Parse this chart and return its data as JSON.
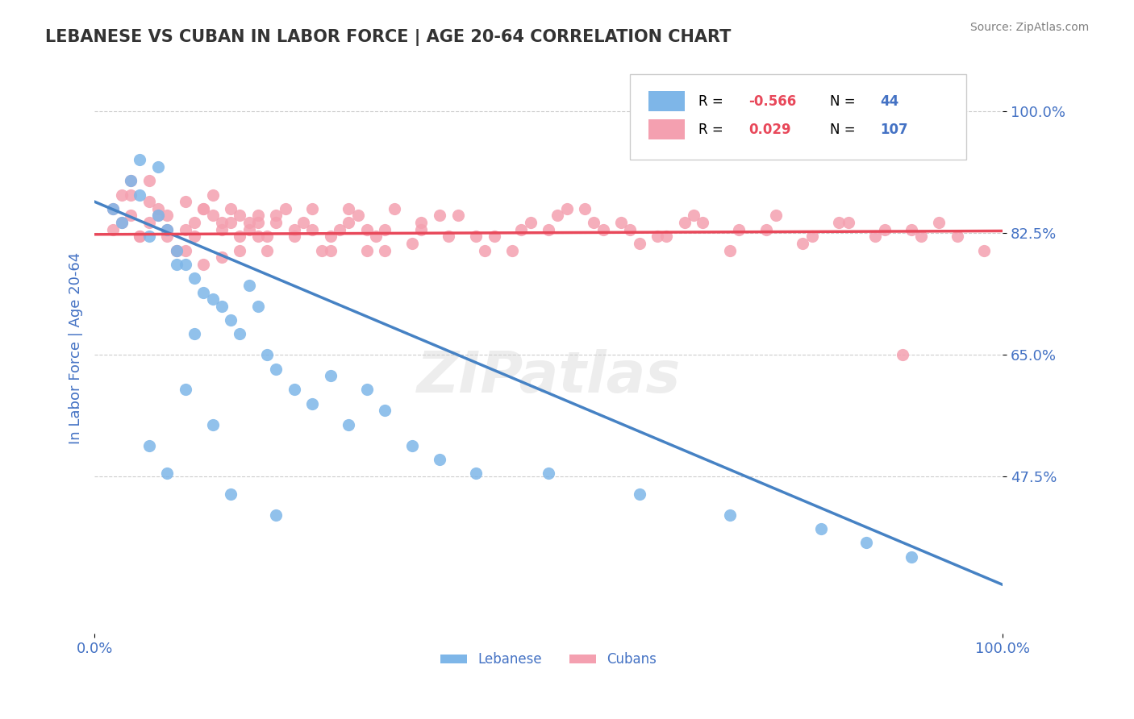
{
  "title": "LEBANESE VS CUBAN IN LABOR FORCE | AGE 20-64 CORRELATION CHART",
  "source_text": "Source: ZipAtlas.com",
  "xlabel": "",
  "ylabel": "In Labor Force | Age 20-64",
  "xlim": [
    0.0,
    1.0
  ],
  "ylim": [
    0.3,
    1.05
  ],
  "yticks": [
    0.475,
    0.65,
    0.825,
    1.0
  ],
  "ytick_labels": [
    "47.5%",
    "65.0%",
    "82.5%",
    "100.0%"
  ],
  "xtick_labels": [
    "0.0%",
    "100.0%"
  ],
  "xticks": [
    0.0,
    1.0
  ],
  "lebanese_R": -0.566,
  "lebanese_N": 44,
  "cuban_R": 0.029,
  "cuban_N": 107,
  "lebanese_color": "#7eb6e8",
  "cuban_color": "#f4a0b0",
  "lebanese_line_color": "#4682c4",
  "cuban_line_color": "#e8485a",
  "watermark": "ZIPatlas",
  "background_color": "#ffffff",
  "grid_color": "#cccccc",
  "title_color": "#333333",
  "axis_label_color": "#4472c4",
  "tick_label_color": "#4472c4",
  "legend_R_color": "#e8485a",
  "legend_N_color": "#4472c4",
  "lebanese_scatter": {
    "x": [
      0.02,
      0.03,
      0.04,
      0.05,
      0.06,
      0.07,
      0.08,
      0.09,
      0.1,
      0.11,
      0.12,
      0.13,
      0.14,
      0.15,
      0.16,
      0.17,
      0.18,
      0.19,
      0.2,
      0.22,
      0.24,
      0.26,
      0.28,
      0.3,
      0.32,
      0.35,
      0.38,
      0.42,
      0.5,
      0.6,
      0.7,
      0.8,
      0.85,
      0.9,
      0.05,
      0.07,
      0.09,
      0.11,
      0.13,
      0.06,
      0.08,
      0.1,
      0.15,
      0.2
    ],
    "y": [
      0.86,
      0.84,
      0.9,
      0.88,
      0.82,
      0.85,
      0.83,
      0.8,
      0.78,
      0.76,
      0.74,
      0.73,
      0.72,
      0.7,
      0.68,
      0.75,
      0.72,
      0.65,
      0.63,
      0.6,
      0.58,
      0.62,
      0.55,
      0.6,
      0.57,
      0.52,
      0.5,
      0.48,
      0.48,
      0.45,
      0.42,
      0.4,
      0.38,
      0.36,
      0.93,
      0.92,
      0.78,
      0.68,
      0.55,
      0.52,
      0.48,
      0.6,
      0.45,
      0.42
    ]
  },
  "cuban_scatter": {
    "x": [
      0.02,
      0.03,
      0.04,
      0.05,
      0.06,
      0.07,
      0.08,
      0.09,
      0.1,
      0.11,
      0.12,
      0.13,
      0.14,
      0.15,
      0.16,
      0.17,
      0.18,
      0.19,
      0.2,
      0.22,
      0.24,
      0.26,
      0.28,
      0.3,
      0.32,
      0.35,
      0.38,
      0.42,
      0.46,
      0.5,
      0.54,
      0.58,
      0.62,
      0.66,
      0.7,
      0.74,
      0.78,
      0.82,
      0.86,
      0.9,
      0.03,
      0.05,
      0.07,
      0.09,
      0.11,
      0.13,
      0.15,
      0.17,
      0.19,
      0.21,
      0.23,
      0.25,
      0.27,
      0.29,
      0.31,
      0.33,
      0.36,
      0.39,
      0.43,
      0.47,
      0.51,
      0.55,
      0.59,
      0.63,
      0.67,
      0.71,
      0.75,
      0.79,
      0.83,
      0.87,
      0.04,
      0.06,
      0.08,
      0.1,
      0.12,
      0.14,
      0.16,
      0.18,
      0.2,
      0.24,
      0.28,
      0.32,
      0.36,
      0.4,
      0.44,
      0.48,
      0.52,
      0.56,
      0.6,
      0.65,
      0.02,
      0.04,
      0.06,
      0.08,
      0.1,
      0.12,
      0.14,
      0.16,
      0.18,
      0.22,
      0.26,
      0.3,
      0.95,
      0.98,
      0.93,
      0.91,
      0.89
    ],
    "y": [
      0.86,
      0.84,
      0.88,
      0.82,
      0.9,
      0.85,
      0.83,
      0.8,
      0.87,
      0.82,
      0.78,
      0.85,
      0.79,
      0.84,
      0.8,
      0.83,
      0.82,
      0.8,
      0.85,
      0.83,
      0.86,
      0.82,
      0.84,
      0.8,
      0.83,
      0.81,
      0.85,
      0.82,
      0.8,
      0.83,
      0.86,
      0.84,
      0.82,
      0.85,
      0.8,
      0.83,
      0.81,
      0.84,
      0.82,
      0.83,
      0.88,
      0.82,
      0.86,
      0.8,
      0.84,
      0.88,
      0.86,
      0.84,
      0.82,
      0.86,
      0.84,
      0.8,
      0.83,
      0.85,
      0.82,
      0.86,
      0.84,
      0.82,
      0.8,
      0.83,
      0.85,
      0.84,
      0.83,
      0.82,
      0.84,
      0.83,
      0.85,
      0.82,
      0.84,
      0.83,
      0.9,
      0.87,
      0.85,
      0.83,
      0.86,
      0.84,
      0.82,
      0.85,
      0.84,
      0.83,
      0.86,
      0.8,
      0.83,
      0.85,
      0.82,
      0.84,
      0.86,
      0.83,
      0.81,
      0.84,
      0.83,
      0.85,
      0.84,
      0.82,
      0.8,
      0.86,
      0.83,
      0.85,
      0.84,
      0.82,
      0.8,
      0.83,
      0.82,
      0.8,
      0.84,
      0.82,
      0.65
    ]
  }
}
